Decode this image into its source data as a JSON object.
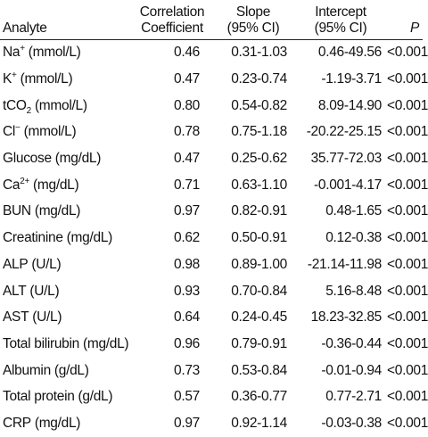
{
  "headers": {
    "analyte": "Analyte",
    "coefficient": [
      "Correlation",
      "Coefficient"
    ],
    "slope": [
      "Slope",
      "(95% CI)"
    ],
    "intercept": [
      "Intercept",
      "(95% CI)"
    ],
    "p": "P"
  },
  "rows": [
    {
      "name": "Na",
      "sup": "+",
      "sub": "",
      "unit": " (mmol/L)",
      "coef": "0.46",
      "slope": "0.31-1.03",
      "intercept": "0.46-49.56",
      "p": "<0.001"
    },
    {
      "name": "K",
      "sup": "+",
      "sub": "",
      "unit": " (mmol/L)",
      "coef": "0.47",
      "slope": "0.23-0.74",
      "intercept": "-1.19-3.71",
      "p": "<0.001"
    },
    {
      "name": "tCO",
      "sup": "",
      "sub": "2",
      "unit": " (mmol/L)",
      "coef": "0.80",
      "slope": "0.54-0.82",
      "intercept": "8.09-14.90",
      "p": "<0.001"
    },
    {
      "name": "Cl",
      "sup": "−",
      "sub": "",
      "unit": " (mmol/L)",
      "coef": "0.78",
      "slope": "0.75-1.18",
      "intercept": "-20.22-25.15",
      "p": "<0.001"
    },
    {
      "name": "Glucose",
      "sup": "",
      "sub": "",
      "unit": " (mg/dL)",
      "coef": "0.47",
      "slope": "0.25-0.62",
      "intercept": "35.77-72.03",
      "p": "<0.001"
    },
    {
      "name": "Ca",
      "sup": "2+",
      "sub": "",
      "unit": " (mg/dL)",
      "coef": "0.71",
      "slope": "0.63-1.10",
      "intercept": "-0.001-4.17",
      "p": "<0.001"
    },
    {
      "name": "BUN",
      "sup": "",
      "sub": "",
      "unit": " (mg/dL)",
      "coef": "0.97",
      "slope": "0.82-0.91",
      "intercept": "0.48-1.65",
      "p": "<0.001"
    },
    {
      "name": "Creatinine",
      "sup": "",
      "sub": "",
      "unit": " (mg/dL)",
      "coef": "0.62",
      "slope": "0.50-0.91",
      "intercept": "0.12-0.38",
      "p": "<0.001"
    },
    {
      "name": "ALP",
      "sup": "",
      "sub": "",
      "unit": " (U/L)",
      "coef": "0.98",
      "slope": "0.89-1.00",
      "intercept": "-21.14-11.98",
      "p": "<0.001"
    },
    {
      "name": "ALT",
      "sup": "",
      "sub": "",
      "unit": " (U/L)",
      "coef": "0.93",
      "slope": "0.70-0.84",
      "intercept": "5.16-8.48",
      "p": "<0.001"
    },
    {
      "name": "AST",
      "sup": "",
      "sub": "",
      "unit": " (U/L)",
      "coef": "0.64",
      "slope": "0.24-0.45",
      "intercept": "18.23-32.85",
      "p": "<0.001"
    },
    {
      "name": "Total bilirubin",
      "sup": "",
      "sub": "",
      "unit": " (mg/dL)",
      "coef": "0.96",
      "slope": "0.79-0.91",
      "intercept": "-0.36-0.44",
      "p": "<0.001"
    },
    {
      "name": "Albumin",
      "sup": "",
      "sub": "",
      "unit": " (g/dL)",
      "coef": "0.73",
      "slope": "0.53-0.84",
      "intercept": "-0.01-0.94",
      "p": "<0.001"
    },
    {
      "name": "Total protein",
      "sup": "",
      "sub": "",
      "unit": " (g/dL)",
      "coef": "0.57",
      "slope": "0.36-0.77",
      "intercept": "0.77-2.71",
      "p": "<0.001"
    },
    {
      "name": "CRP",
      "sup": "",
      "sub": "",
      "unit": " (mg/dL)",
      "coef": "0.97",
      "slope": "0.92-1.14",
      "intercept": "-0.03-0.38",
      "p": "<0.001"
    }
  ]
}
